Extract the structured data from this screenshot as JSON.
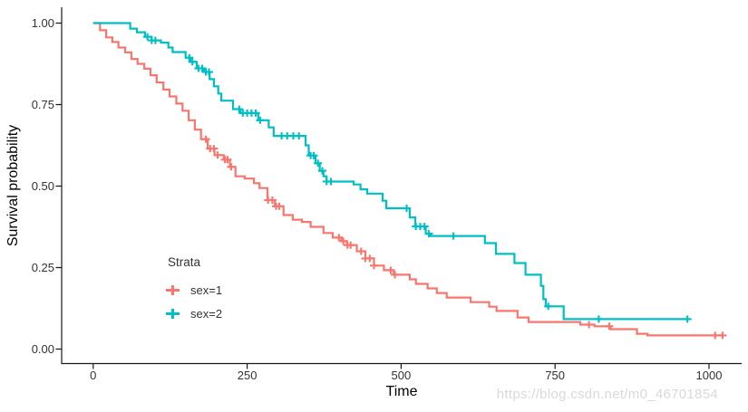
{
  "chart_data": {
    "type": "line",
    "subtype": "kaplan-meier-step",
    "title": "",
    "xlabel": "Time",
    "ylabel": "Survival probability",
    "xlim": [
      0,
      1050
    ],
    "ylim": [
      0,
      1
    ],
    "grid": false,
    "x_ticks": {
      "values": [
        0,
        250,
        500,
        750,
        1000
      ],
      "labels": [
        "0",
        "250",
        "500",
        "750",
        "1000"
      ]
    },
    "y_ticks": {
      "values": [
        0,
        0.25,
        0.5,
        0.75,
        1
      ],
      "labels": [
        "0.00",
        "0.25",
        "0.50",
        "0.75",
        "1.00"
      ]
    },
    "legend": {
      "title": "Strata",
      "position": "inside-bottom-left",
      "items": [
        {
          "label": "sex=1",
          "color": "#F8766D"
        },
        {
          "label": "sex=2",
          "color": "#00BFC4"
        }
      ]
    },
    "series": [
      {
        "name": "sex=1",
        "color": "#F8766D",
        "steps": [
          [
            0,
            1.0
          ],
          [
            11,
            0.978
          ],
          [
            21,
            0.956
          ],
          [
            31,
            0.942
          ],
          [
            41,
            0.925
          ],
          [
            52,
            0.91
          ],
          [
            62,
            0.89
          ],
          [
            72,
            0.875
          ],
          [
            83,
            0.86
          ],
          [
            93,
            0.84
          ],
          [
            103,
            0.818
          ],
          [
            114,
            0.796
          ],
          [
            124,
            0.775
          ],
          [
            135,
            0.753
          ],
          [
            145,
            0.731
          ],
          [
            155,
            0.702
          ],
          [
            165,
            0.673
          ],
          [
            175,
            0.644
          ],
          [
            186,
            0.615
          ],
          [
            197,
            0.595
          ],
          [
            212,
            0.581
          ],
          [
            222,
            0.559
          ],
          [
            231,
            0.53
          ],
          [
            246,
            0.523
          ],
          [
            261,
            0.509
          ],
          [
            270,
            0.494
          ],
          [
            283,
            0.457
          ],
          [
            295,
            0.438
          ],
          [
            309,
            0.411
          ],
          [
            324,
            0.397
          ],
          [
            339,
            0.39
          ],
          [
            353,
            0.375
          ],
          [
            374,
            0.356
          ],
          [
            389,
            0.342
          ],
          [
            403,
            0.331
          ],
          [
            412,
            0.319
          ],
          [
            428,
            0.3
          ],
          [
            442,
            0.278
          ],
          [
            456,
            0.256
          ],
          [
            472,
            0.242
          ],
          [
            488,
            0.228
          ],
          [
            514,
            0.214
          ],
          [
            524,
            0.2
          ],
          [
            543,
            0.186
          ],
          [
            558,
            0.172
          ],
          [
            574,
            0.158
          ],
          [
            613,
            0.144
          ],
          [
            643,
            0.13
          ],
          [
            655,
            0.117
          ],
          [
            689,
            0.097
          ],
          [
            707,
            0.083
          ],
          [
            791,
            0.075
          ],
          [
            814,
            0.07
          ],
          [
            840,
            0.061
          ],
          [
            883,
            0.047
          ],
          [
            900,
            0.042
          ],
          [
            1022,
            0.042
          ]
        ],
        "censor_times": [
          183,
          190,
          196,
          202,
          214,
          218,
          224,
          284,
          291,
          297,
          302,
          399,
          406,
          413,
          418,
          435,
          442,
          449,
          456,
          483,
          490,
          805,
          838,
          1010,
          1022
        ]
      },
      {
        "name": "sex=2",
        "color": "#00BFC4",
        "steps": [
          [
            0,
            1.0
          ],
          [
            60,
            0.983
          ],
          [
            71,
            0.972
          ],
          [
            84,
            0.958
          ],
          [
            95,
            0.947
          ],
          [
            110,
            0.94
          ],
          [
            122,
            0.925
          ],
          [
            129,
            0.911
          ],
          [
            150,
            0.894
          ],
          [
            158,
            0.881
          ],
          [
            168,
            0.861
          ],
          [
            180,
            0.85
          ],
          [
            189,
            0.828
          ],
          [
            196,
            0.806
          ],
          [
            203,
            0.784
          ],
          [
            208,
            0.762
          ],
          [
            227,
            0.736
          ],
          [
            239,
            0.724
          ],
          [
            268,
            0.702
          ],
          [
            285,
            0.68
          ],
          [
            293,
            0.654
          ],
          [
            345,
            0.625
          ],
          [
            350,
            0.594
          ],
          [
            361,
            0.57
          ],
          [
            368,
            0.547
          ],
          [
            374,
            0.53
          ],
          [
            379,
            0.514
          ],
          [
            423,
            0.505
          ],
          [
            434,
            0.49
          ],
          [
            445,
            0.477
          ],
          [
            470,
            0.455
          ],
          [
            476,
            0.432
          ],
          [
            514,
            0.404
          ],
          [
            523,
            0.376
          ],
          [
            540,
            0.354
          ],
          [
            548,
            0.347
          ],
          [
            636,
            0.325
          ],
          [
            654,
            0.292
          ],
          [
            684,
            0.264
          ],
          [
            702,
            0.228
          ],
          [
            727,
            0.194
          ],
          [
            731,
            0.153
          ],
          [
            735,
            0.131
          ],
          [
            764,
            0.092
          ],
          [
            965,
            0.092
          ]
        ],
        "censor_times": [
          88,
          95,
          101,
          156,
          161,
          171,
          177,
          183,
          188,
          237,
          243,
          250,
          257,
          264,
          271,
          306,
          315,
          325,
          334,
          353,
          358,
          365,
          372,
          379,
          386,
          509,
          524,
          531,
          538,
          545,
          585,
          739,
          821,
          965
        ]
      }
    ]
  },
  "watermark": "https://blog.csdn.net/m0_46701854"
}
